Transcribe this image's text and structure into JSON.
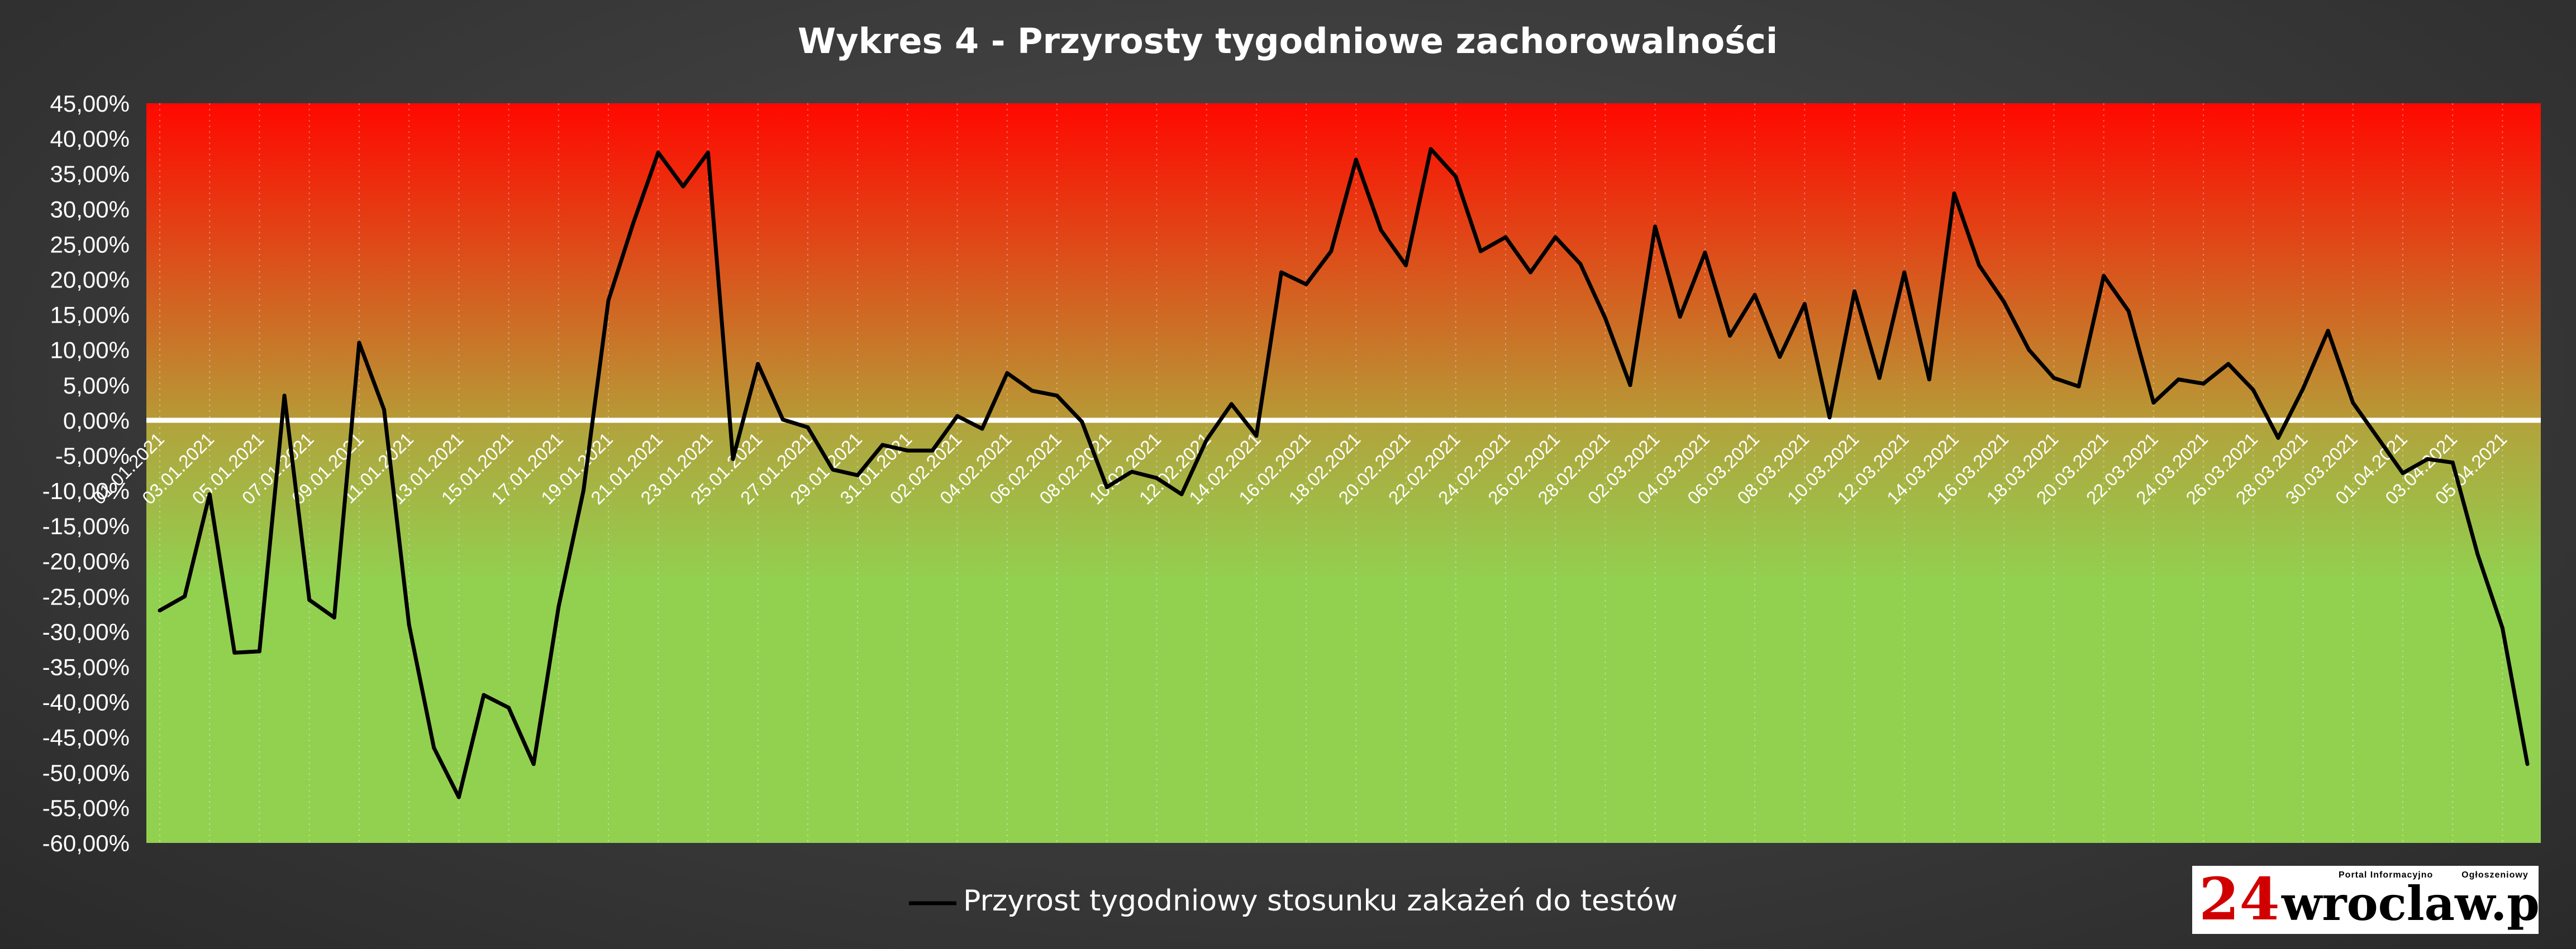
{
  "chart_data": {
    "type": "line",
    "title": "Wykres 4 - Przyrosty tygodniowe zachorowalności",
    "xlabel": "",
    "ylabel": "",
    "ylim": [
      -0.6,
      0.45
    ],
    "y_tick_step": 0.05,
    "y_format": "percent_comma_2",
    "grid": "vertical-dotted",
    "legend_position": "bottom",
    "background_zones": [
      {
        "from": 0,
        "to": 0.45,
        "color_top": "#ff0800",
        "color_bottom": "#b79a36"
      },
      {
        "from": -0.6,
        "to": 0,
        "color_top": "#b2a23c",
        "color_bottom": "#92d050"
      }
    ],
    "x_labels": [
      "01.01.2021",
      "03.01.2021",
      "05.01.2021",
      "07.01.2021",
      "09.01.2021",
      "11.01.2021",
      "13.01.2021",
      "15.01.2021",
      "17.01.2021",
      "19.01.2021",
      "21.01.2021",
      "23.01.2021",
      "25.01.2021",
      "27.01.2021",
      "29.01.2021",
      "31.01.2021",
      "02.02.2021",
      "04.02.2021",
      "06.02.2021",
      "08.02.2021",
      "10.02.2021",
      "12.02.2021",
      "14.02.2021",
      "16.02.2021",
      "18.02.2021",
      "20.02.2021",
      "22.02.2021",
      "24.02.2021",
      "26.02.2021",
      "28.02.2021",
      "02.03.2021",
      "04.03.2021",
      "06.03.2021",
      "08.03.2021",
      "10.03.2021",
      "12.03.2021",
      "14.03.2021",
      "16.03.2021",
      "18.03.2021",
      "20.03.2021",
      "22.03.2021",
      "24.03.2021",
      "26.03.2021",
      "28.03.2021",
      "30.03.2021",
      "01.04.2021",
      "03.04.2021",
      "05.04.2021"
    ],
    "series": [
      {
        "name": "Przyrost tygodniowy stosunku zakażeń do testów",
        "color": "#000000",
        "values": [
          -0.27,
          -0.25,
          -0.105,
          -0.33,
          -0.328,
          0.035,
          -0.255,
          -0.28,
          0.11,
          0.015,
          -0.29,
          -0.465,
          -0.535,
          -0.39,
          -0.408,
          -0.488,
          -0.265,
          -0.1,
          0.17,
          0.28,
          0.38,
          0.332,
          0.38,
          -0.055,
          0.08,
          0.001,
          -0.01,
          -0.07,
          -0.078,
          -0.035,
          -0.043,
          -0.043,
          0.006,
          -0.012,
          0.067,
          0.042,
          0.035,
          -0.002,
          -0.095,
          -0.073,
          -0.082,
          -0.105,
          -0.028,
          0.023,
          -0.022,
          0.21,
          0.193,
          0.24,
          0.37,
          0.27,
          0.22,
          0.385,
          0.346,
          0.24,
          0.26,
          0.21,
          0.26,
          0.222,
          0.145,
          0.05,
          0.275,
          0.147,
          0.238,
          0.12,
          0.178,
          0.09,
          0.165,
          0.004,
          0.183,
          0.06,
          0.21,
          0.058,
          0.322,
          0.22,
          0.168,
          0.1,
          0.06,
          0.048,
          0.205,
          0.155,
          0.025,
          0.058,
          0.052,
          0.08,
          0.043,
          -0.025,
          0.045,
          0.127,
          0.025,
          -0.025,
          -0.075,
          -0.055,
          -0.06,
          -0.19,
          -0.295,
          -0.488
        ]
      }
    ]
  },
  "logo": {
    "number": "24",
    "site": "wroclaw.pl",
    "tagline_left": "Portal Informacyjno",
    "tagline_right": "Ogłoszeniowy"
  }
}
